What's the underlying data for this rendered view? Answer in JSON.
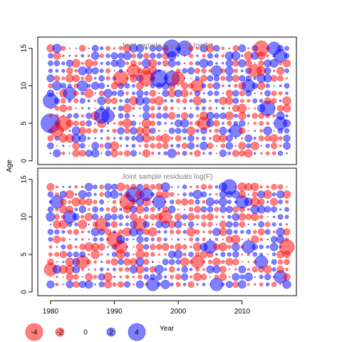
{
  "chart_data": [
    {
      "type": "scatter",
      "title": "Joint sample residuals log(N)",
      "x": {
        "range": [
          1978,
          2018.5
        ],
        "ticks": [
          1980,
          1990,
          2000,
          2010
        ],
        "show_tick_labels": false
      },
      "y": {
        "range": [
          -0.5,
          16.5
        ],
        "ticks": [
          0,
          5,
          10,
          15
        ]
      },
      "years": [
        1980,
        2017
      ],
      "ages": [
        1,
        15
      ],
      "bubbles": [
        {
          "x": 1980,
          "y": 5,
          "r": 4.5
        },
        {
          "x": 1980,
          "y": 8,
          "r": 3.5
        },
        {
          "x": 1981,
          "y": 4,
          "r": -3
        },
        {
          "x": 1982,
          "y": 5,
          "r": -3.5
        },
        {
          "x": 1983,
          "y": 9,
          "r": 3.0
        },
        {
          "x": 1985,
          "y": 10,
          "r": 2.5
        },
        {
          "x": 1988,
          "y": 6,
          "r": 3.5
        },
        {
          "x": 1989,
          "y": 6,
          "r": 3.0
        },
        {
          "x": 1991,
          "y": 11,
          "r": -3.5
        },
        {
          "x": 1993,
          "y": 12,
          "r": -3
        },
        {
          "x": 1995,
          "y": 11,
          "r": -3.5
        },
        {
          "x": 1997,
          "y": 11,
          "r": 4.0
        },
        {
          "x": 1999,
          "y": 11,
          "r": 3.5
        },
        {
          "x": 1999,
          "y": 15,
          "r": 4.0
        },
        {
          "x": 2000,
          "y": 11,
          "r": -3
        },
        {
          "x": 2001,
          "y": 15,
          "r": 3.5
        },
        {
          "x": 2003,
          "y": 10,
          "r": -3
        },
        {
          "x": 2004,
          "y": 5,
          "r": -3
        },
        {
          "x": 2006,
          "y": 12,
          "r": 2.5
        },
        {
          "x": 2009,
          "y": 4,
          "r": 3.0
        },
        {
          "x": 2011,
          "y": 10,
          "r": 3.0
        },
        {
          "x": 2012,
          "y": 12,
          "r": -3
        },
        {
          "x": 2013,
          "y": 15,
          "r": -3.5
        },
        {
          "x": 2014,
          "y": 7,
          "r": 3.5
        },
        {
          "x": 2015,
          "y": 15,
          "r": 3.0
        },
        {
          "x": 2016,
          "y": 14,
          "r": 3.0
        },
        {
          "x": 2016,
          "y": 5,
          "r": 3.0
        }
      ]
    },
    {
      "type": "scatter",
      "title": "Joint sample residuals log(F)",
      "x": {
        "range": [
          1978,
          2018.5
        ],
        "ticks": [
          1980,
          1990,
          2000,
          2010
        ],
        "show_tick_labels": true
      },
      "y": {
        "range": [
          -0.5,
          16.5
        ],
        "ticks": [
          0,
          5,
          10,
          15
        ]
      },
      "years": [
        1980,
        2017
      ],
      "ages": [
        1,
        14
      ],
      "bubbles": [
        {
          "x": 1980,
          "y": 3,
          "r": -3
        },
        {
          "x": 1981,
          "y": 12,
          "r": 3.0
        },
        {
          "x": 1983,
          "y": 10,
          "r": 3.0
        },
        {
          "x": 1985,
          "y": 4,
          "r": -3
        },
        {
          "x": 1988,
          "y": 9,
          "r": -3
        },
        {
          "x": 1990,
          "y": 7,
          "r": -3.5
        },
        {
          "x": 1991,
          "y": 6,
          "r": -3
        },
        {
          "x": 1992,
          "y": 12,
          "r": -3.5
        },
        {
          "x": 1993,
          "y": 13,
          "r": 3.5
        },
        {
          "x": 1994,
          "y": 9,
          "r": -3
        },
        {
          "x": 1995,
          "y": 13,
          "r": 3.0
        },
        {
          "x": 1996,
          "y": 1,
          "r": 3.0
        },
        {
          "x": 1997,
          "y": 12,
          "r": 3.0
        },
        {
          "x": 1998,
          "y": 10,
          "r": -3
        },
        {
          "x": 2003,
          "y": 4,
          "r": -3
        },
        {
          "x": 2005,
          "y": 6,
          "r": 3.0
        },
        {
          "x": 2006,
          "y": 1,
          "r": 3.0
        },
        {
          "x": 2008,
          "y": 14,
          "r": 3.5
        },
        {
          "x": 2010,
          "y": 12,
          "r": 3.0
        },
        {
          "x": 2011,
          "y": 6,
          "r": 3.0
        },
        {
          "x": 2013,
          "y": 4,
          "r": 3.0
        },
        {
          "x": 2016,
          "y": 2,
          "r": 3.0
        },
        {
          "x": 2017,
          "y": 6,
          "r": -3.5
        }
      ]
    }
  ],
  "axes": {
    "ylabel": "Age",
    "xlabel": "Year"
  },
  "legend": {
    "items": [
      {
        "label": "-4",
        "value": -4
      },
      {
        "label": "-2",
        "value": -2
      },
      {
        "label": "0",
        "value": 0
      },
      {
        "label": "2",
        "value": 2
      },
      {
        "label": "4",
        "value": 4
      }
    ]
  },
  "colors": {
    "negative": "#ff0000",
    "positive": "#0000ff",
    "fill_opacity": 0.5,
    "title": "#808080",
    "axis": "#000000"
  }
}
